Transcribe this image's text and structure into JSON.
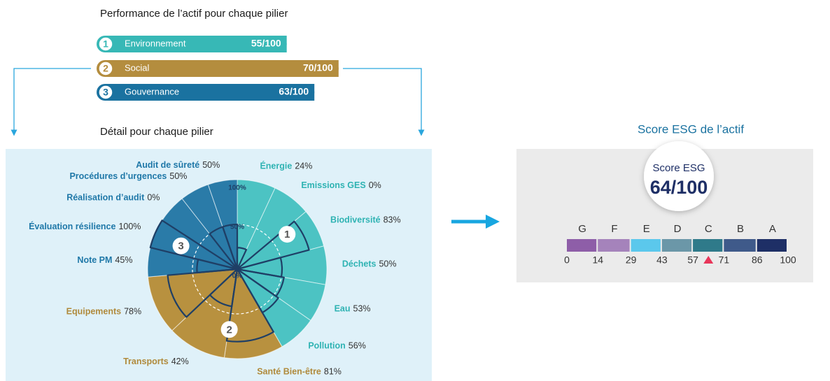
{
  "pillars": {
    "title": "Performance de l’actif pour chaque pilier",
    "max": 100,
    "items": [
      {
        "number": "1",
        "name": "Environnement",
        "value": 55,
        "value_label": "55/100",
        "color": "#37b8b6"
      },
      {
        "number": "2",
        "name": "Social",
        "value": 70,
        "value_label": "70/100",
        "color": "#b48d3e"
      },
      {
        "number": "3",
        "name": "Gouvernance",
        "value": 63,
        "value_label": "63/100",
        "color": "#1a72a0"
      }
    ]
  },
  "chart_data": {
    "type": "polar",
    "title": "Détail pour chaque pilier",
    "rlim": [
      0,
      100
    ],
    "rticks": [
      {
        "value": 0,
        "label": "0%"
      },
      {
        "value": 50,
        "label": "50%"
      },
      {
        "value": 100,
        "label": "100%"
      }
    ],
    "outline_color": "#1f3f66",
    "groups": [
      {
        "number": "1",
        "color": "#4cc3c3",
        "label_color": "#2fb3b3",
        "categories": [
          "Énergie",
          "Emissions GES",
          "Biodiversité",
          "Déchets",
          "Eau",
          "Pollution"
        ],
        "values": [
          24,
          0,
          83,
          50,
          53,
          56
        ],
        "value_labels": [
          "24%",
          "0%",
          "83%",
          "50%",
          "53%",
          "56%"
        ]
      },
      {
        "number": "2",
        "color": "#b8913f",
        "label_color": "#b08a3c",
        "categories": [
          "Santé Bien-être",
          "Transports",
          "Equipements"
        ],
        "values": [
          81,
          42,
          78
        ],
        "value_labels": [
          "81%",
          "42%",
          "78%"
        ]
      },
      {
        "number": "3",
        "color": "#2a7ba8",
        "label_color": "#1f78a8",
        "categories": [
          "Note PM",
          "Évaluation résilience",
          "Réalisation d’audit",
          "Procédures d’urgences",
          "Audit de sûreté"
        ],
        "values": [
          45,
          100,
          0,
          50,
          50
        ],
        "value_labels": [
          "45%",
          "100%",
          "0%",
          "50%",
          "50%"
        ]
      }
    ]
  },
  "score": {
    "title": "Score ESG de l’actif",
    "label": "Score ESG",
    "value": 64,
    "value_label": "64/100",
    "grades": [
      "G",
      "F",
      "E",
      "D",
      "C",
      "B",
      "A"
    ],
    "grade_colors": [
      "#8e5ea8",
      "#a583bb",
      "#5bc8ec",
      "#6b97a8",
      "#2f7a8a",
      "#3f5a8a",
      "#1e2f66"
    ],
    "xlim": [
      0,
      100
    ],
    "xticks": [
      0,
      14,
      29,
      43,
      57,
      71,
      86,
      100
    ],
    "marker_color": "#e8365a"
  }
}
